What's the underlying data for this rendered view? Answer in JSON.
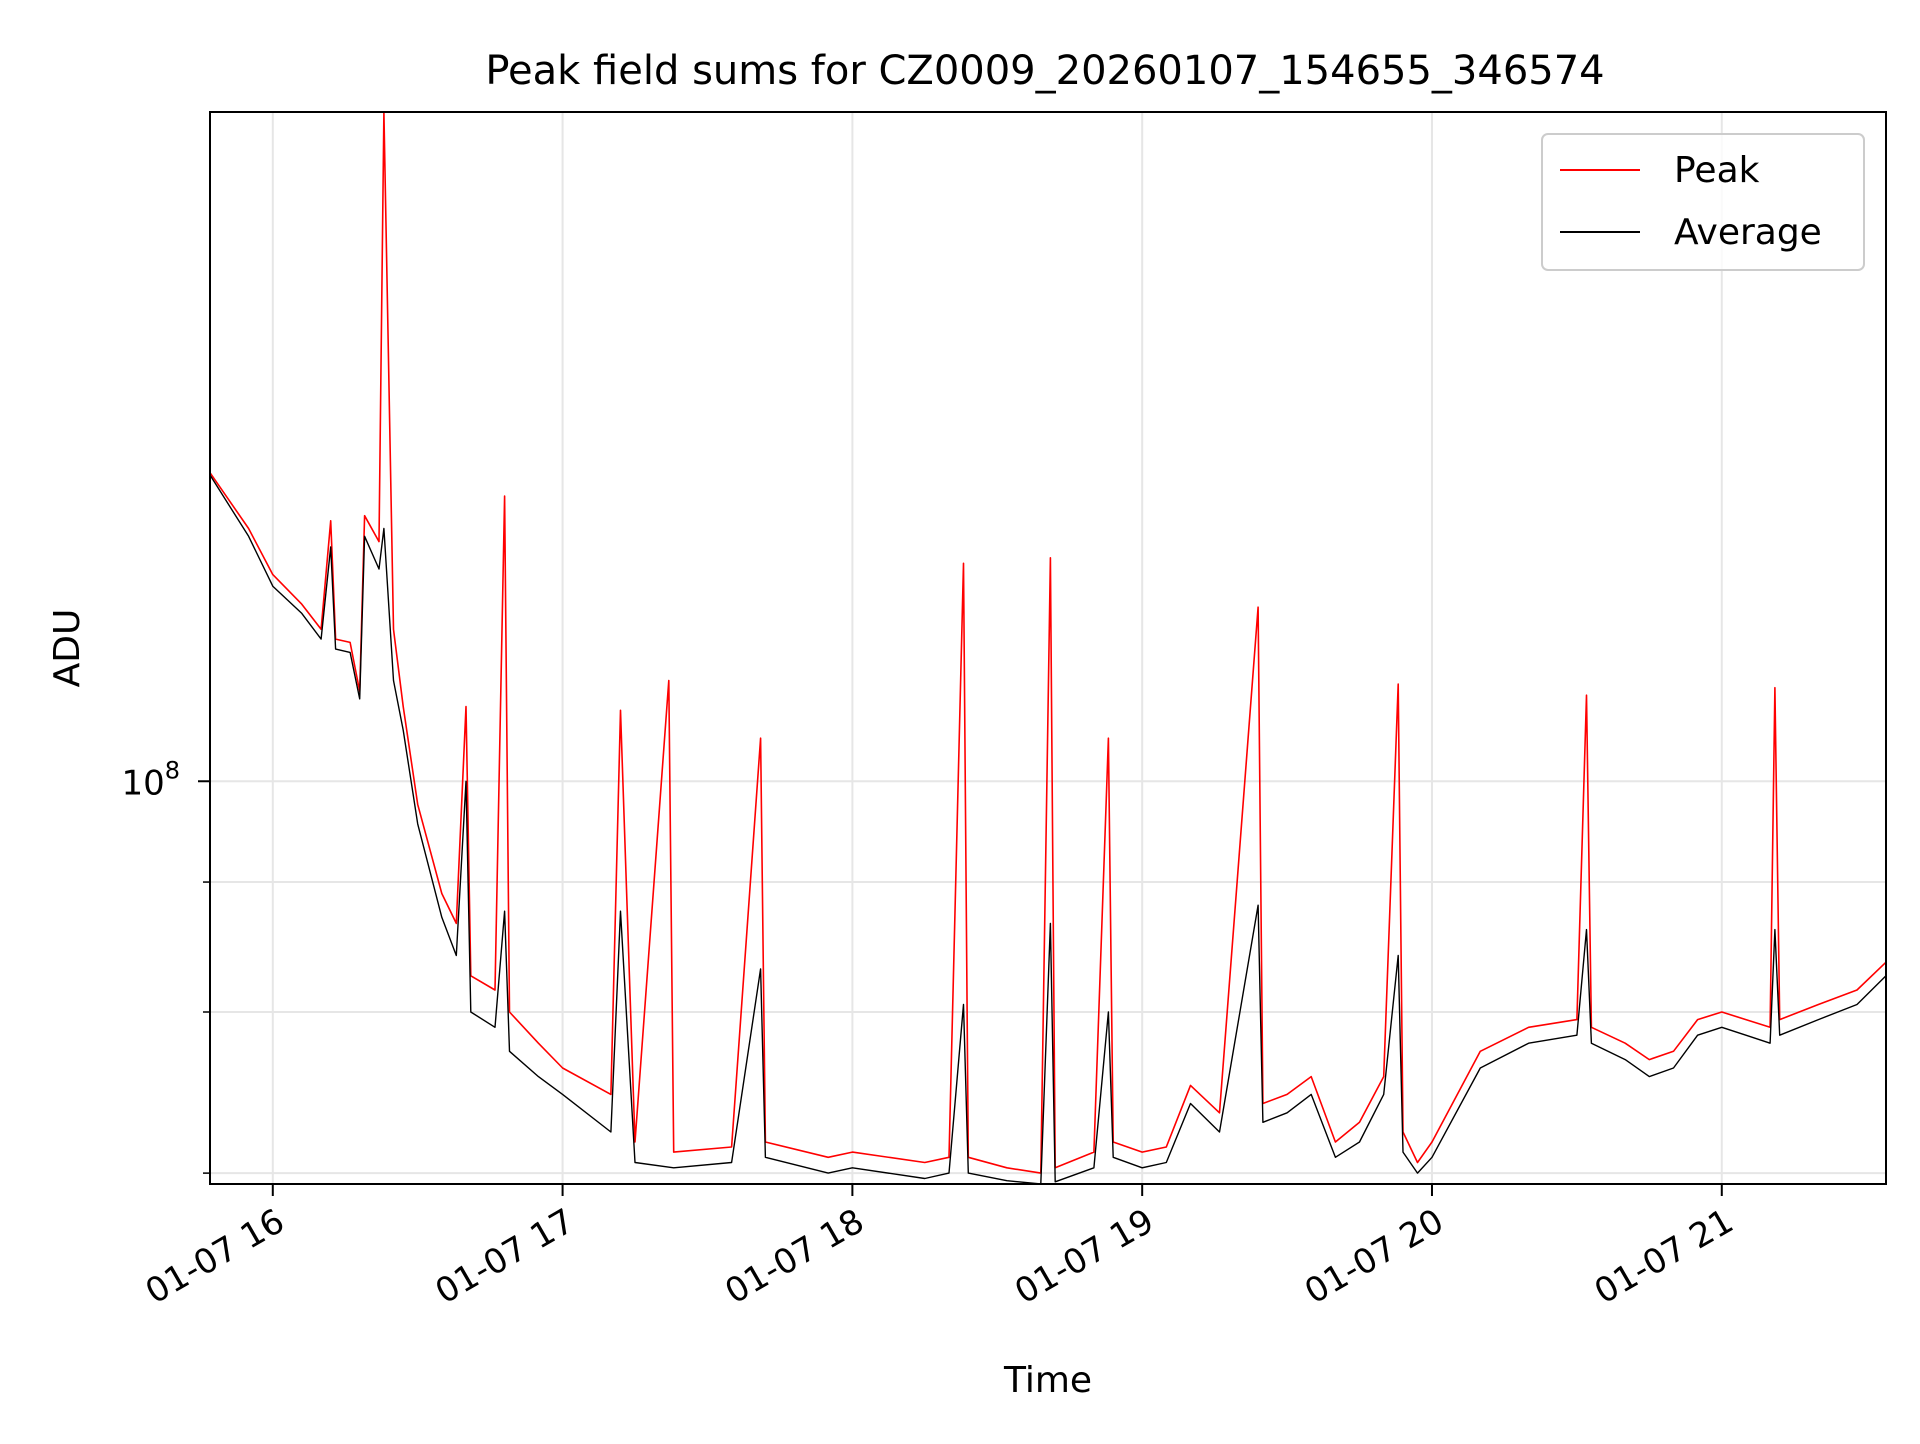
{
  "chart_data": {
    "type": "line",
    "title": "Peak field sums for CZ0009_20260107_154655_346574",
    "xlabel": "Time",
    "ylabel": "ADU",
    "yscale": "log",
    "xlim": [
      "2026-01-07 15:47",
      "2026-01-07 21:34"
    ],
    "ylim": [
      41000000,
      440000000
    ],
    "grid": true,
    "legend_position": "top-right",
    "x_ticks": [
      {
        "value": "2026-01-07 16:00",
        "label": "01-07 16"
      },
      {
        "value": "2026-01-07 17:00",
        "label": "01-07 17"
      },
      {
        "value": "2026-01-07 18:00",
        "label": "01-07 18"
      },
      {
        "value": "2026-01-07 19:00",
        "label": "01-07 19"
      },
      {
        "value": "2026-01-07 20:00",
        "label": "01-07 20"
      },
      {
        "value": "2026-01-07 21:00",
        "label": "01-07 21"
      }
    ],
    "y_major_ticks": [
      {
        "value": 100000000,
        "base": "10",
        "exp": "8"
      }
    ],
    "y_minor_ticks": [
      42000000,
      60000000,
      80000000
    ],
    "series": [
      {
        "name": "Peak",
        "color": "#ff0000",
        "points": [
          [
            "2026-01-07 15:47",
            198000000
          ],
          [
            "2026-01-07 15:55",
            175000000
          ],
          [
            "2026-01-07 16:00",
            158000000
          ],
          [
            "2026-01-07 16:06",
            148000000
          ],
          [
            "2026-01-07 16:10",
            140000000
          ],
          [
            "2026-01-07 16:12",
            178000000
          ],
          [
            "2026-01-07 16:13",
            137000000
          ],
          [
            "2026-01-07 16:16",
            136000000
          ],
          [
            "2026-01-07 16:18",
            122000000
          ],
          [
            "2026-01-07 16:19",
            180000000
          ],
          [
            "2026-01-07 16:22",
            170000000
          ],
          [
            "2026-01-07 16:23",
            440000000
          ],
          [
            "2026-01-07 16:25",
            140000000
          ],
          [
            "2026-01-07 16:27",
            118000000
          ],
          [
            "2026-01-07 16:30",
            95000000
          ],
          [
            "2026-01-07 16:35",
            78000000
          ],
          [
            "2026-01-07 16:38",
            73000000
          ],
          [
            "2026-01-07 16:40",
            118000000
          ],
          [
            "2026-01-07 16:41",
            65000000
          ],
          [
            "2026-01-07 16:46",
            63000000
          ],
          [
            "2026-01-07 16:48",
            188000000
          ],
          [
            "2026-01-07 16:49",
            60000000
          ],
          [
            "2026-01-07 16:55",
            56000000
          ],
          [
            "2026-01-07 17:00",
            53000000
          ],
          [
            "2026-01-07 17:10",
            50000000
          ],
          [
            "2026-01-07 17:12",
            117000000
          ],
          [
            "2026-01-07 17:15",
            45000000
          ],
          [
            "2026-01-07 17:22",
            125000000
          ],
          [
            "2026-01-07 17:23",
            44000000
          ],
          [
            "2026-01-07 17:35",
            44500000
          ],
          [
            "2026-01-07 17:41",
            110000000
          ],
          [
            "2026-01-07 17:42",
            45000000
          ],
          [
            "2026-01-07 17:55",
            43500000
          ],
          [
            "2026-01-07 18:00",
            44000000
          ],
          [
            "2026-01-07 18:15",
            43000000
          ],
          [
            "2026-01-07 18:20",
            43500000
          ],
          [
            "2026-01-07 18:23",
            162000000
          ],
          [
            "2026-01-07 18:24",
            43500000
          ],
          [
            "2026-01-07 18:32",
            42500000
          ],
          [
            "2026-01-07 18:39",
            42000000
          ],
          [
            "2026-01-07 18:41",
            164000000
          ],
          [
            "2026-01-07 18:42",
            42500000
          ],
          [
            "2026-01-07 18:50",
            44000000
          ],
          [
            "2026-01-07 18:53",
            110000000
          ],
          [
            "2026-01-07 18:54",
            45000000
          ],
          [
            "2026-01-07 19:00",
            44000000
          ],
          [
            "2026-01-07 19:05",
            44500000
          ],
          [
            "2026-01-07 19:10",
            51000000
          ],
          [
            "2026-01-07 19:16",
            48000000
          ],
          [
            "2026-01-07 19:24",
            147000000
          ],
          [
            "2026-01-07 19:25",
            49000000
          ],
          [
            "2026-01-07 19:30",
            50000000
          ],
          [
            "2026-01-07 19:35",
            52000000
          ],
          [
            "2026-01-07 19:40",
            45000000
          ],
          [
            "2026-01-07 19:45",
            47000000
          ],
          [
            "2026-01-07 19:50",
            52000000
          ],
          [
            "2026-01-07 19:53",
            124000000
          ],
          [
            "2026-01-07 19:54",
            46000000
          ],
          [
            "2026-01-07 19:57",
            43000000
          ],
          [
            "2026-01-07 20:00",
            45000000
          ],
          [
            "2026-01-07 20:10",
            55000000
          ],
          [
            "2026-01-07 20:20",
            58000000
          ],
          [
            "2026-01-07 20:30",
            59000000
          ],
          [
            "2026-01-07 20:32",
            121000000
          ],
          [
            "2026-01-07 20:33",
            58000000
          ],
          [
            "2026-01-07 20:40",
            56000000
          ],
          [
            "2026-01-07 20:45",
            54000000
          ],
          [
            "2026-01-07 20:50",
            55000000
          ],
          [
            "2026-01-07 20:55",
            59000000
          ],
          [
            "2026-01-07 21:00",
            60000000
          ],
          [
            "2026-01-07 21:05",
            59000000
          ],
          [
            "2026-01-07 21:10",
            58000000
          ],
          [
            "2026-01-07 21:11",
            123000000
          ],
          [
            "2026-01-07 21:12",
            59000000
          ],
          [
            "2026-01-07 21:20",
            61000000
          ],
          [
            "2026-01-07 21:28",
            63000000
          ],
          [
            "2026-01-07 21:34",
            67000000
          ]
        ]
      },
      {
        "name": "Average",
        "color": "#000000",
        "points": [
          [
            "2026-01-07 15:47",
            197000000
          ],
          [
            "2026-01-07 15:55",
            172000000
          ],
          [
            "2026-01-07 16:00",
            154000000
          ],
          [
            "2026-01-07 16:06",
            145000000
          ],
          [
            "2026-01-07 16:10",
            137000000
          ],
          [
            "2026-01-07 16:12",
            168000000
          ],
          [
            "2026-01-07 16:13",
            134000000
          ],
          [
            "2026-01-07 16:16",
            133000000
          ],
          [
            "2026-01-07 16:18",
            120000000
          ],
          [
            "2026-01-07 16:19",
            172000000
          ],
          [
            "2026-01-07 16:22",
            160000000
          ],
          [
            "2026-01-07 16:23",
            175000000
          ],
          [
            "2026-01-07 16:25",
            125000000
          ],
          [
            "2026-01-07 16:27",
            112000000
          ],
          [
            "2026-01-07 16:30",
            91000000
          ],
          [
            "2026-01-07 16:35",
            74000000
          ],
          [
            "2026-01-07 16:38",
            68000000
          ],
          [
            "2026-01-07 16:40",
            100000000
          ],
          [
            "2026-01-07 16:41",
            60000000
          ],
          [
            "2026-01-07 16:46",
            58000000
          ],
          [
            "2026-01-07 16:48",
            75000000
          ],
          [
            "2026-01-07 16:49",
            55000000
          ],
          [
            "2026-01-07 16:55",
            52000000
          ],
          [
            "2026-01-07 17:00",
            50000000
          ],
          [
            "2026-01-07 17:10",
            46000000
          ],
          [
            "2026-01-07 17:12",
            75000000
          ],
          [
            "2026-01-07 17:15",
            43000000
          ],
          [
            "2026-01-07 17:23",
            42500000
          ],
          [
            "2026-01-07 17:35",
            43000000
          ],
          [
            "2026-01-07 17:41",
            66000000
          ],
          [
            "2026-01-07 17:42",
            43500000
          ],
          [
            "2026-01-07 17:55",
            42000000
          ],
          [
            "2026-01-07 18:00",
            42500000
          ],
          [
            "2026-01-07 18:15",
            41500000
          ],
          [
            "2026-01-07 18:20",
            42000000
          ],
          [
            "2026-01-07 18:23",
            61000000
          ],
          [
            "2026-01-07 18:24",
            42000000
          ],
          [
            "2026-01-07 18:32",
            41300000
          ],
          [
            "2026-01-07 18:39",
            41000000
          ],
          [
            "2026-01-07 18:41",
            73000000
          ],
          [
            "2026-01-07 18:42",
            41200000
          ],
          [
            "2026-01-07 18:50",
            42500000
          ],
          [
            "2026-01-07 18:53",
            60000000
          ],
          [
            "2026-01-07 18:54",
            43500000
          ],
          [
            "2026-01-07 19:00",
            42500000
          ],
          [
            "2026-01-07 19:05",
            43000000
          ],
          [
            "2026-01-07 19:10",
            49000000
          ],
          [
            "2026-01-07 19:16",
            46000000
          ],
          [
            "2026-01-07 19:24",
            76000000
          ],
          [
            "2026-01-07 19:25",
            47000000
          ],
          [
            "2026-01-07 19:30",
            48000000
          ],
          [
            "2026-01-07 19:35",
            50000000
          ],
          [
            "2026-01-07 19:40",
            43500000
          ],
          [
            "2026-01-07 19:45",
            45000000
          ],
          [
            "2026-01-07 19:50",
            50000000
          ],
          [
            "2026-01-07 19:53",
            68000000
          ],
          [
            "2026-01-07 19:54",
            44000000
          ],
          [
            "2026-01-07 19:57",
            42000000
          ],
          [
            "2026-01-07 20:00",
            43500000
          ],
          [
            "2026-01-07 20:10",
            53000000
          ],
          [
            "2026-01-07 20:20",
            56000000
          ],
          [
            "2026-01-07 20:30",
            57000000
          ],
          [
            "2026-01-07 20:32",
            72000000
          ],
          [
            "2026-01-07 20:33",
            56000000
          ],
          [
            "2026-01-07 20:40",
            54000000
          ],
          [
            "2026-01-07 20:45",
            52000000
          ],
          [
            "2026-01-07 20:50",
            53000000
          ],
          [
            "2026-01-07 20:55",
            57000000
          ],
          [
            "2026-01-07 21:00",
            58000000
          ],
          [
            "2026-01-07 21:05",
            57000000
          ],
          [
            "2026-01-07 21:10",
            56000000
          ],
          [
            "2026-01-07 21:11",
            72000000
          ],
          [
            "2026-01-07 21:12",
            57000000
          ],
          [
            "2026-01-07 21:20",
            59000000
          ],
          [
            "2026-01-07 21:28",
            61000000
          ],
          [
            "2026-01-07 21:34",
            65000000
          ]
        ]
      }
    ]
  }
}
